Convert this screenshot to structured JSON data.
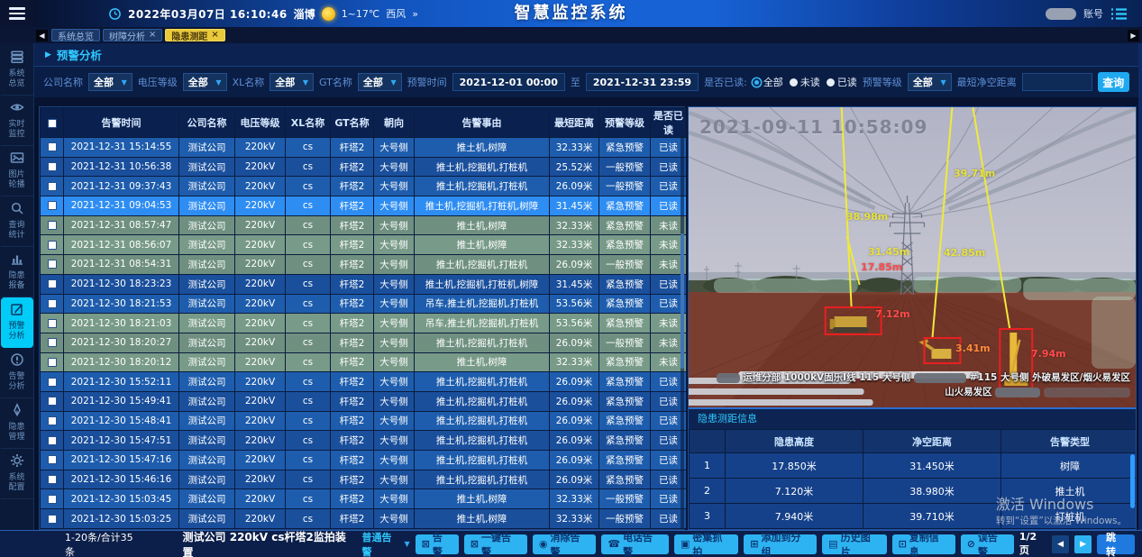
{
  "header": {
    "datetime": "2022年03月07日 16:10:46",
    "city": "淄博",
    "temperature": "1~17℃",
    "wind": "西风",
    "more": "»",
    "title": "智慧监控系统",
    "account": "账号"
  },
  "tabs": {
    "close_glyph": "×",
    "items": [
      {
        "name": "tab-system-overview",
        "label": "系统总览",
        "closable": false,
        "active": false
      },
      {
        "name": "tab-tree-analysis",
        "label": "树障分析",
        "closable": true,
        "active": false
      },
      {
        "name": "tab-hazard-ranging",
        "label": "隐患测距",
        "closable": true,
        "active": true
      }
    ]
  },
  "sidebar": {
    "items": [
      {
        "name": "system-overview",
        "icon": "overview-icon",
        "label": "系统总览",
        "active": false
      },
      {
        "name": "live-monitor",
        "icon": "eye-icon",
        "label": "实时监控",
        "active": false
      },
      {
        "name": "image-carousel",
        "icon": "image-icon",
        "label": "图片轮播",
        "active": false
      },
      {
        "name": "query-stats",
        "icon": "search-icon",
        "label": "查询统计",
        "active": false
      },
      {
        "name": "hazard-report",
        "icon": "chart-icon",
        "label": "隐患报备",
        "active": false
      },
      {
        "name": "warning-analysis",
        "icon": "edit-icon",
        "label": "预警分析",
        "active": true
      },
      {
        "name": "alarm-analysis",
        "icon": "alert-icon",
        "label": "告警分析",
        "active": false
      },
      {
        "name": "hazard-manage",
        "icon": "pen-icon",
        "label": "隐患管理",
        "active": false
      },
      {
        "name": "system-config",
        "icon": "gear-icon",
        "label": "系统配置",
        "active": false
      }
    ]
  },
  "panel": {
    "title": "预警分析"
  },
  "filters": {
    "company_label": "公司名称",
    "company_value": "全部",
    "voltage_label": "电压等级",
    "voltage_value": "全部",
    "xl_label": "XL名称",
    "xl_value": "全部",
    "gt_label": "GT名称",
    "gt_value": "全部",
    "time_label": "预警时间",
    "time_from": "2021-12-01 00:00",
    "to_label": "至",
    "time_to": "2021-12-31 23:59",
    "read_label": "是否已读:",
    "read_options": [
      {
        "label": "全部",
        "selected": true
      },
      {
        "label": "未读",
        "selected": false
      },
      {
        "label": "已读",
        "selected": false
      }
    ],
    "level_label": "预警等级",
    "level_value": "全部",
    "distance_label": "最短净空距离",
    "distance_value": "",
    "query_label": "查询"
  },
  "alarm_table": {
    "headers": [
      "告警时间",
      "公司名称",
      "电压等级",
      "XL名称",
      "GT名称",
      "朝向",
      "告警事由",
      "最短距离",
      "预警等级",
      "是否已读"
    ],
    "selected_index": 3,
    "rows": [
      [
        "2021-12-31 15:14:55",
        "测试公司",
        "220kV",
        "cs",
        "杆塔2",
        "大号侧",
        "推土机,树障",
        "32.33米",
        "紧急预警",
        "已读"
      ],
      [
        "2021-12-31 10:56:38",
        "测试公司",
        "220kV",
        "cs",
        "杆塔2",
        "大号侧",
        "推土机,挖掘机,打桩机",
        "25.52米",
        "一般预警",
        "已读"
      ],
      [
        "2021-12-31 09:37:43",
        "测试公司",
        "220kV",
        "cs",
        "杆塔2",
        "大号侧",
        "推土机,挖掘机,打桩机",
        "26.09米",
        "一般预警",
        "已读"
      ],
      [
        "2021-12-31 09:04:53",
        "测试公司",
        "220kV",
        "cs",
        "杆塔2",
        "大号侧",
        "推土机,挖掘机,打桩机,树障",
        "31.45米",
        "紧急预警",
        "已读"
      ],
      [
        "2021-12-31 08:57:47",
        "测试公司",
        "220kV",
        "cs",
        "杆塔2",
        "大号侧",
        "推土机,树障",
        "32.33米",
        "紧急预警",
        "未读"
      ],
      [
        "2021-12-31 08:56:07",
        "测试公司",
        "220kV",
        "cs",
        "杆塔2",
        "大号侧",
        "推土机,树障",
        "32.33米",
        "紧急预警",
        "未读"
      ],
      [
        "2021-12-31 08:54:31",
        "测试公司",
        "220kV",
        "cs",
        "杆塔2",
        "大号侧",
        "推土机,挖掘机,打桩机",
        "26.09米",
        "一般预警",
        "未读"
      ],
      [
        "2021-12-30 18:23:23",
        "测试公司",
        "220kV",
        "cs",
        "杆塔2",
        "大号侧",
        "推土机,挖掘机,打桩机,树障",
        "31.45米",
        "紧急预警",
        "已读"
      ],
      [
        "2021-12-30 18:21:53",
        "测试公司",
        "220kV",
        "cs",
        "杆塔2",
        "大号侧",
        "吊车,推土机,挖掘机,打桩机",
        "53.56米",
        "紧急预警",
        "已读"
      ],
      [
        "2021-12-30 18:21:03",
        "测试公司",
        "220kV",
        "cs",
        "杆塔2",
        "大号侧",
        "吊车,推土机,挖掘机,打桩机",
        "53.56米",
        "紧急预警",
        "未读"
      ],
      [
        "2021-12-30 18:20:27",
        "测试公司",
        "220kV",
        "cs",
        "杆塔2",
        "大号侧",
        "推土机,挖掘机,打桩机",
        "26.09米",
        "一般预警",
        "未读"
      ],
      [
        "2021-12-30 18:20:12",
        "测试公司",
        "220kV",
        "cs",
        "杆塔2",
        "大号侧",
        "推土机,树障",
        "32.33米",
        "紧急预警",
        "未读"
      ],
      [
        "2021-12-30 15:52:11",
        "测试公司",
        "220kV",
        "cs",
        "杆塔2",
        "大号侧",
        "推土机,挖掘机,打桩机",
        "26.09米",
        "紧急预警",
        "已读"
      ],
      [
        "2021-12-30 15:49:41",
        "测试公司",
        "220kV",
        "cs",
        "杆塔2",
        "大号侧",
        "推土机,挖掘机,打桩机",
        "26.09米",
        "紧急预警",
        "已读"
      ],
      [
        "2021-12-30 15:48:41",
        "测试公司",
        "220kV",
        "cs",
        "杆塔2",
        "大号侧",
        "推土机,挖掘机,打桩机",
        "26.09米",
        "紧急预警",
        "已读"
      ],
      [
        "2021-12-30 15:47:51",
        "测试公司",
        "220kV",
        "cs",
        "杆塔2",
        "大号侧",
        "推土机,挖掘机,打桩机",
        "26.09米",
        "紧急预警",
        "已读"
      ],
      [
        "2021-12-30 15:47:16",
        "测试公司",
        "220kV",
        "cs",
        "杆塔2",
        "大号侧",
        "推土机,挖掘机,打桩机",
        "26.09米",
        "紧急预警",
        "已读"
      ],
      [
        "2021-12-30 15:46:16",
        "测试公司",
        "220kV",
        "cs",
        "杆塔2",
        "大号侧",
        "推土机,挖掘机,打桩机",
        "26.09米",
        "紧急预警",
        "已读"
      ],
      [
        "2021-12-30 15:03:45",
        "测试公司",
        "220kV",
        "cs",
        "杆塔2",
        "大号侧",
        "推土机,树障",
        "32.33米",
        "一般预警",
        "已读"
      ],
      [
        "2021-12-30 15:03:25",
        "测试公司",
        "220kV",
        "cs",
        "杆塔2",
        "大号侧",
        "推土机,树障",
        "32.33米",
        "一般预警",
        "已读"
      ]
    ]
  },
  "photo": {
    "timestamp": "2021-09-11 10:58:09",
    "measurements": [
      {
        "text": "39.71m",
        "kind": "clearance"
      },
      {
        "text": "38.98m",
        "kind": "clearance"
      },
      {
        "text": "31.45m",
        "kind": "clearance"
      },
      {
        "text": "42.85m",
        "kind": "clearance"
      },
      {
        "text": "17.85m",
        "kind": "height"
      },
      {
        "text": "7.12m",
        "kind": "height"
      },
      {
        "text": "3.41m",
        "kind": "height_alt"
      },
      {
        "text": "7.94m",
        "kind": "height"
      }
    ],
    "colors": {
      "clearance": "#e8e23c",
      "height": "#ff4b4b",
      "height_alt": "#ff8a3c"
    },
    "caption_line1_a": "运维分部 1000kV固乐I线 115 大号侧",
    "caption_line1_b": "#115 大号侧 外破易发区/烟火易发区",
    "caption_line2": "山火易发区"
  },
  "measure": {
    "title": "隐患测距信息",
    "headers": [
      "隐患高度",
      "净空距离",
      "告警类型"
    ],
    "rows": [
      [
        "1",
        "17.850米",
        "31.450米",
        "树障"
      ],
      [
        "2",
        "7.120米",
        "38.980米",
        "推土机"
      ],
      [
        "3",
        "7.940米",
        "39.710米",
        "打桩机"
      ]
    ]
  },
  "watermark": {
    "line1": "激活 Windows",
    "line2": "转到“设置”以激活 Windows。"
  },
  "footer": {
    "count": "1-20条/合计35条",
    "device": "测试公司 220kV cs杆塔2监拍装置",
    "alarm_type": "普通告警",
    "buttons": [
      {
        "name": "alarm",
        "icon": "envelope-x-icon",
        "label": "告警"
      },
      {
        "name": "one-key-alarm",
        "icon": "envelope-x-icon",
        "label": "一键告警"
      },
      {
        "name": "clear-alarm",
        "icon": "pin-circle-icon",
        "label": "消除告警"
      },
      {
        "name": "phone-alarm",
        "icon": "phone-icon",
        "label": "电话告警"
      },
      {
        "name": "burst-capture",
        "icon": "camera-icon",
        "label": "密集抓拍"
      },
      {
        "name": "add-to-group",
        "icon": "box-arrow-icon",
        "label": "添加到分组"
      },
      {
        "name": "history-images",
        "icon": "picture-icon",
        "label": "历史图片"
      },
      {
        "name": "copy-info",
        "icon": "copy-icon",
        "label": "复制信息"
      },
      {
        "name": "false-alarm",
        "icon": "circle-slash-icon",
        "label": "误告警"
      }
    ],
    "page": "1/2页",
    "jump_label": "跳转"
  }
}
